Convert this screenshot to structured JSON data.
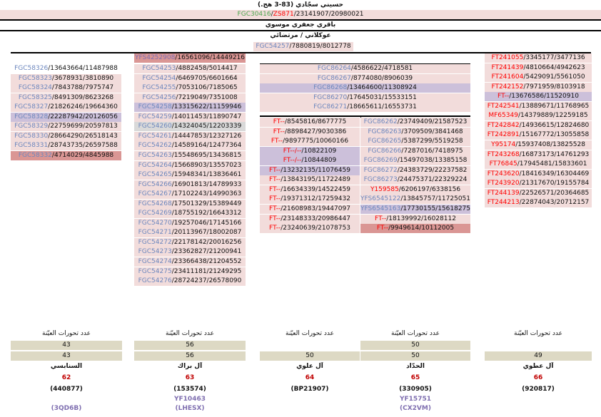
{
  "top": {
    "root_title": "حسيني سجّادي (83-3 هج.)",
    "root_snp": {
      "a": "FGC30416",
      "b": "ZS871",
      "c": "23141907/20980021"
    },
    "sub_title": "باقري جعفري موسوي",
    "sub2_title": "عوكلاني / مرتضائي",
    "sub2_snp": {
      "a": "FGC54257",
      "b": "7880819/8012778"
    }
  },
  "col1": [
    {
      "snp": "FGC58326",
      "pos": "13643664/11487988",
      "bg": "none"
    },
    {
      "snp": "FGC58323",
      "pos": "3678931/3810890",
      "bg": "pink"
    },
    {
      "snp": "FGC58324",
      "pos": "7843788/7975747",
      "bg": "pink"
    },
    {
      "snp": "FGC58325",
      "pos": "8491309/8623268",
      "bg": "pink"
    },
    {
      "snp": "FGC58327",
      "pos": "21826246/19664360",
      "bg": "pink"
    },
    {
      "snp": "FGC58328",
      "pos": "22287942/20126056",
      "bg": "lav"
    },
    {
      "snp": "FGC58329",
      "pos": "22759699/20597813",
      "bg": "pink"
    },
    {
      "snp": "FGC58330",
      "pos": "28664290/26518143",
      "bg": "pink"
    },
    {
      "snp": "FGC58331",
      "pos": "28743735/26597588",
      "bg": "pink"
    },
    {
      "snp": "FGC58332",
      "pos": "4714029/4845988",
      "bg": "red"
    }
  ],
  "col2_head": {
    "snp": "YFS4252908",
    "pos": "16561096/14449216"
  },
  "col2": [
    {
      "snp": "FGC54253",
      "pos": "4882458/5014417",
      "bg": "pink"
    },
    {
      "snp": "FGC54254",
      "pos": "6469705/6601664",
      "bg": "pink"
    },
    {
      "snp": "FGC54255",
      "pos": "7053106/7185065",
      "bg": "pink"
    },
    {
      "snp": "FGC54256",
      "pos": "7219049/7351008",
      "bg": "pink"
    },
    {
      "snp": "FGC54258",
      "pos": "13315622/11159946",
      "bg": "lav"
    },
    {
      "snp": "FGC54259",
      "pos": "14011453/11890747",
      "bg": "pink"
    },
    {
      "snp": "FGC54260",
      "pos": "14324045/12203339",
      "bg": "gray"
    },
    {
      "snp": "FGC54261",
      "pos": "14447853/12327126",
      "bg": "pink"
    },
    {
      "snp": "FGC54262",
      "pos": "14589164/12477364",
      "bg": "pink"
    },
    {
      "snp": "FGC54263",
      "pos": "15548695/13436815",
      "bg": "pink"
    },
    {
      "snp": "FGC54264",
      "pos": "15668903/13557023",
      "bg": "pink"
    },
    {
      "snp": "FGC54265",
      "pos": "15948341/13836461",
      "bg": "pink"
    },
    {
      "snp": "FGC54266",
      "pos": "16901813/14789933",
      "bg": "pink"
    },
    {
      "snp": "FGC54267",
      "pos": "17102243/14990363",
      "bg": "pink"
    },
    {
      "snp": "FGC54268",
      "pos": "17501329/15389449",
      "bg": "pink"
    },
    {
      "snp": "FGC54269",
      "pos": "18755192/16643312",
      "bg": "pink"
    },
    {
      "snp": "FGC54270",
      "pos": "19257046/17145166",
      "bg": "pink"
    },
    {
      "snp": "FGC54271",
      "pos": "20113967/18002087",
      "bg": "pink"
    },
    {
      "snp": "FGC54272",
      "pos": "22178142/20016256",
      "bg": "pink"
    },
    {
      "snp": "FGC54273",
      "pos": "23362827/21200941",
      "bg": "pink"
    },
    {
      "snp": "FGC54274",
      "pos": "23366438/21204552",
      "bg": "pink"
    },
    {
      "snp": "FGC54275",
      "pos": "23411181/21249295",
      "bg": "pink"
    },
    {
      "snp": "FGC54276",
      "pos": "28724237/26578090",
      "bg": "pink"
    }
  ],
  "mid_head": [
    {
      "snp": "FGC86264",
      "pos": "4586622/4718581",
      "bg": "pink"
    },
    {
      "snp": "FGC86267",
      "pos": "8774080/8906039",
      "bg": "pink"
    },
    {
      "snp": "FGC86268",
      "pos": "13464600/11308924",
      "bg": "lav"
    },
    {
      "snp": "FGC86270",
      "pos": "17645031/15533151",
      "bg": "pink"
    },
    {
      "snp": "FGC86271",
      "pos": "18665611/16553731",
      "bg": "pink"
    }
  ],
  "col3": [
    {
      "snp": "FT--",
      "pos": "8545816/8677775",
      "bg": "pink"
    },
    {
      "snp": "FT--",
      "pos": "8898427/9030386",
      "bg": "pink"
    },
    {
      "snp": "FT--",
      "pos": "9897775/10060166",
      "bg": "pink"
    },
    {
      "snp": "FT--/--",
      "pos": "10822109",
      "bg": "lav"
    },
    {
      "snp": "FT--/--",
      "pos": "10844809",
      "bg": "lav"
    },
    {
      "snp": "FT--",
      "pos": "13232135/11076459",
      "bg": "lav"
    },
    {
      "snp": "FT--",
      "pos": "13843195/11722489",
      "bg": "pink"
    },
    {
      "snp": "FT--",
      "pos": "16634339/14522459",
      "bg": "pink"
    },
    {
      "snp": "FT--",
      "pos": "19371312/17259432",
      "bg": "pink"
    },
    {
      "snp": "FT--",
      "pos": "21608983/19447097",
      "bg": "pink"
    },
    {
      "snp": "FT--",
      "pos": "23148333/20986447",
      "bg": "pink"
    },
    {
      "snp": "FT--",
      "pos": "23240639/21078753",
      "bg": "pink"
    }
  ],
  "col4": [
    {
      "snp": "FGC86262",
      "pos": "23749409/21587523",
      "bg": "pink",
      "c": "blue"
    },
    {
      "snp": "FGC86263",
      "pos": "3709509/3841468",
      "bg": "pink",
      "c": "blue"
    },
    {
      "snp": "FGC86265",
      "pos": "5387299/5519258",
      "bg": "pink",
      "c": "blue"
    },
    {
      "snp": "FGC86266",
      "pos": "7287016/7418975",
      "bg": "pink",
      "c": "blue"
    },
    {
      "snp": "FGC86269",
      "pos": "15497038/13385158",
      "bg": "pink",
      "c": "blue"
    },
    {
      "snp": "FGC86272",
      "pos": "24383729/22237582",
      "bg": "pink",
      "c": "blue"
    },
    {
      "snp": "FGC86273",
      "pos": "24475371/22329224",
      "bg": "pink",
      "c": "blue"
    },
    {
      "snp": "Y159585",
      "pos": "6206197/6338156",
      "bg": "pink",
      "c": "red"
    },
    {
      "snp": "YFS6545122",
      "pos": "13845757/11725051",
      "bg": "pink",
      "c": "blue"
    },
    {
      "snp": "YFS6545163",
      "pos": "17730155/15618275",
      "bg": "lav",
      "c": "blue"
    },
    {
      "snp": "FT--",
      "pos": "18139992/16028112",
      "bg": "pink",
      "c": "red"
    },
    {
      "snp": "FT--",
      "pos": "9949614/10112005",
      "bg": "red",
      "c": "red"
    }
  ],
  "col5": [
    {
      "snp": "FT241055",
      "pos": "3345177/3477136",
      "bg": "pink"
    },
    {
      "snp": "FT241439",
      "pos": "4810664/4942623",
      "bg": "pink"
    },
    {
      "snp": "FT241604",
      "pos": "5429091/5561050",
      "bg": "pink"
    },
    {
      "snp": "FT242152",
      "pos": "7971959/8103918",
      "bg": "pink"
    },
    {
      "snp": "FT--",
      "pos": "13676586/11520910",
      "bg": "lav"
    },
    {
      "snp": "FT242541",
      "pos": "13889671/11768965",
      "bg": "pink"
    },
    {
      "snp": "MF65349",
      "pos": "14379889/12259185",
      "bg": "pink"
    },
    {
      "snp": "FT242842",
      "pos": "14936615/12824680",
      "bg": "pink"
    },
    {
      "snp": "FT242891",
      "pos": "15167772/13055858",
      "bg": "pink"
    },
    {
      "snp": "Y95174",
      "pos": "15937408/13825528",
      "bg": "pink"
    },
    {
      "snp": "FT243268",
      "pos": "16873173/14761293",
      "bg": "pink"
    },
    {
      "snp": "FT76845",
      "pos": "17945481/15833601",
      "bg": "pink"
    },
    {
      "snp": "FT243620",
      "pos": "18416349/16304469",
      "bg": "pink"
    },
    {
      "snp": "FT243920",
      "pos": "21317670/19155784",
      "bg": "pink"
    },
    {
      "snp": "FT244139",
      "pos": "22526571/20364685",
      "bg": "pink"
    },
    {
      "snp": "FT244213",
      "pos": "22874043/20712157",
      "bg": "pink"
    }
  ],
  "footer": [
    {
      "label": "عدد تحورات العيّنة",
      "n1": "43",
      "n2": "43",
      "name": "السنابسي",
      "num": "62",
      "kit": "(440877)",
      "yf": "",
      "code": "(3QD6B)"
    },
    {
      "label": "عدد تحورات العيّنة",
      "n1": "56",
      "n2": "56",
      "name": "آل براك",
      "num": "63",
      "kit": "(153574)",
      "yf": "YF10463",
      "code": "(LHESX)"
    },
    {
      "label": "عدد تحورات العيّنة",
      "n1": "",
      "n2": "50",
      "name": "آل علوي",
      "num": "64",
      "kit": "(BP21907)",
      "yf": "",
      "code": ""
    },
    {
      "label": "عدد تحورات العيّنة",
      "n1": "50",
      "n2": "50",
      "name": "الحدّاد",
      "num": "65",
      "kit": "(330905)",
      "yf": "YF15751",
      "code": "(CX2VM)"
    },
    {
      "label": "عدد تحورات العيّنة",
      "n1": "",
      "n2": "49",
      "name": "آل عطوي",
      "num": "66",
      "kit": "(920817)",
      "yf": "",
      "code": ""
    }
  ]
}
